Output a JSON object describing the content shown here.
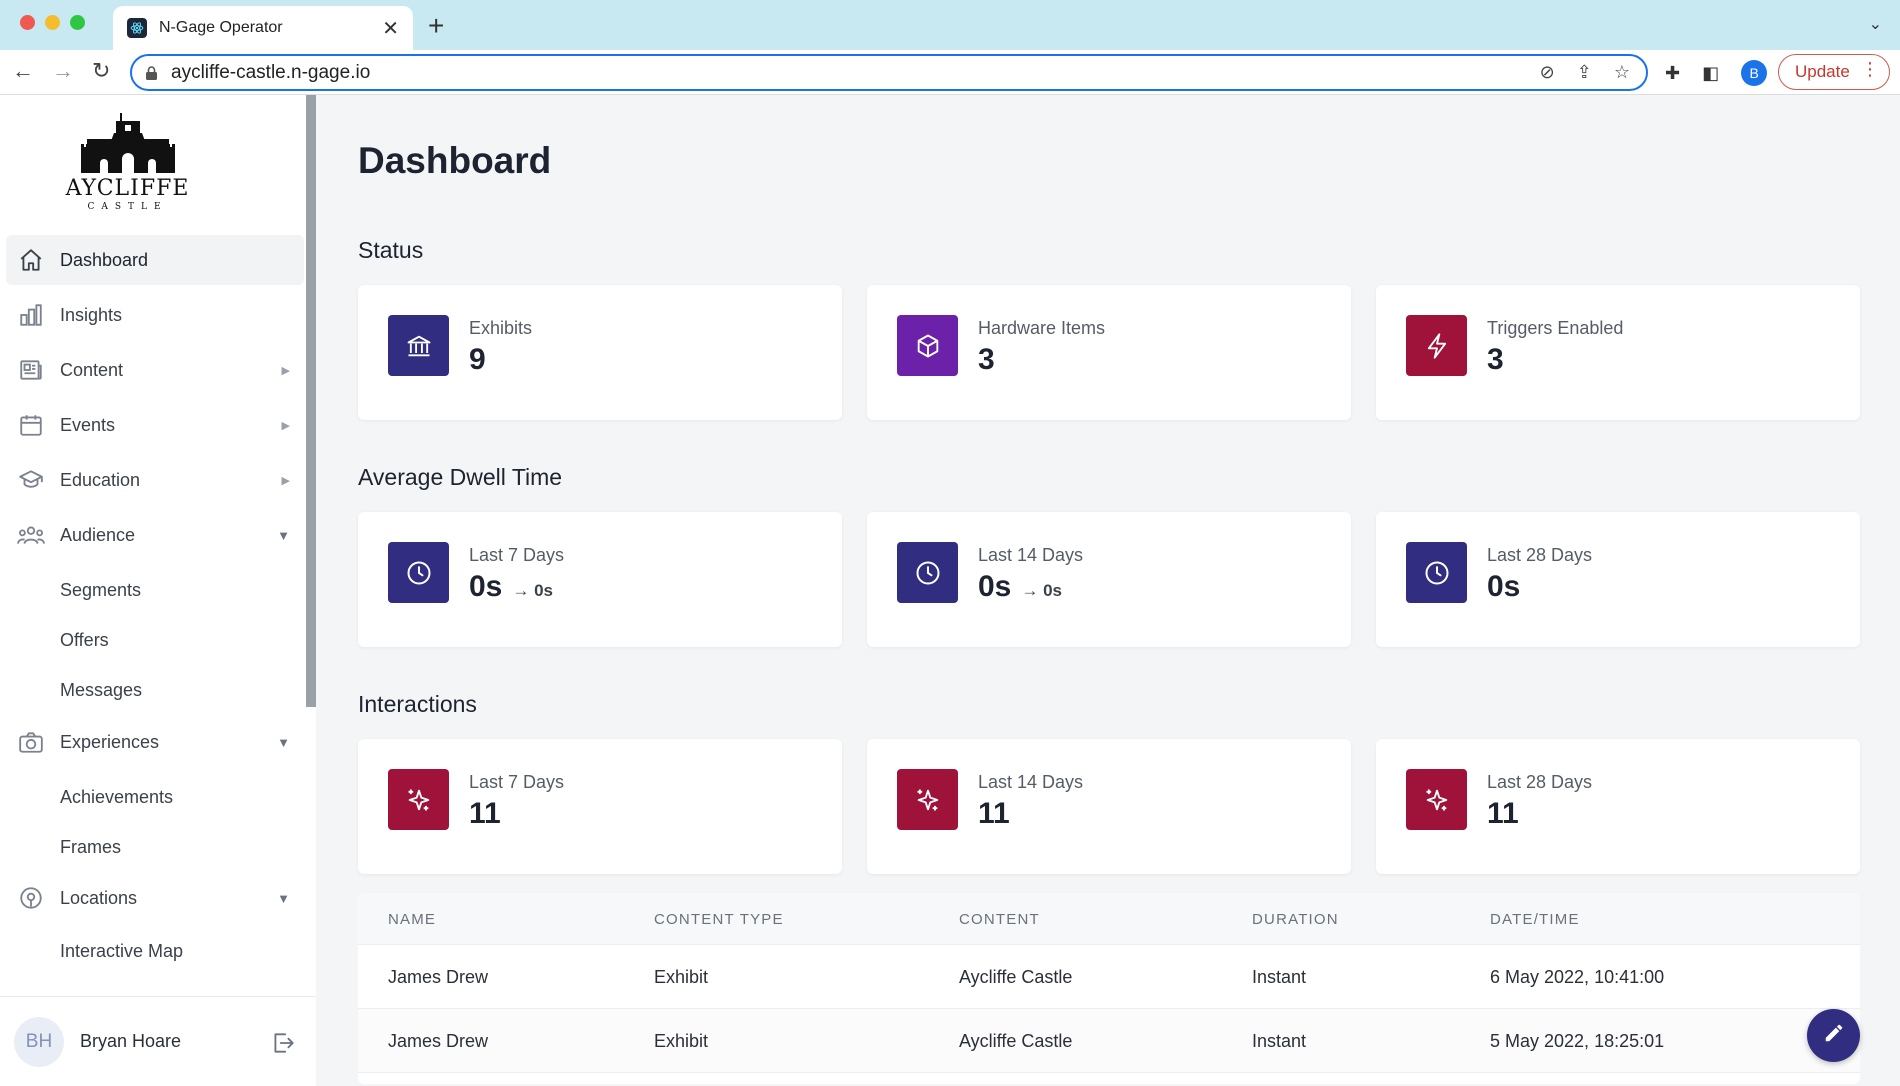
{
  "browser": {
    "tab_title": "N-Gage Operator",
    "url": "aycliffe-castle.n-gage.io",
    "profile_initial": "B",
    "update_label": "Update"
  },
  "brand": {
    "logo_word": "AYCLIFFE",
    "logo_sub": "CASTLE"
  },
  "sidebar": {
    "items": [
      {
        "label": "Dashboard",
        "icon": "home-icon",
        "active": true
      },
      {
        "label": "Insights",
        "icon": "bar-chart-icon"
      },
      {
        "label": "Content",
        "icon": "newspaper-icon",
        "expandable": true
      },
      {
        "label": "Events",
        "icon": "calendar-icon",
        "expandable": true
      },
      {
        "label": "Education",
        "icon": "graduation-cap-icon",
        "expandable": true
      },
      {
        "label": "Audience",
        "icon": "users-icon",
        "expanded": true
      },
      {
        "label": "Segments"
      },
      {
        "label": "Offers"
      },
      {
        "label": "Messages"
      },
      {
        "label": "Experiences",
        "icon": "camera-icon",
        "expanded": true
      },
      {
        "label": "Achievements"
      },
      {
        "label": "Frames"
      },
      {
        "label": "Locations",
        "icon": "map-pin-icon",
        "expanded": true
      },
      {
        "label": "Interactive Map"
      }
    ],
    "user": {
      "initials": "BH",
      "name": "Bryan Hoare"
    }
  },
  "main": {
    "title": "Dashboard",
    "sections": [
      {
        "title": "Status",
        "cards": [
          {
            "label": "Exhibits",
            "value": "9",
            "icon": "building-columns-icon",
            "color": "#312e81"
          },
          {
            "label": "Hardware Items",
            "value": "3",
            "icon": "cube-icon",
            "color": "#6b21a8"
          },
          {
            "label": "Triggers Enabled",
            "value": "3",
            "icon": "lightning-icon",
            "color": "#9f1239"
          }
        ]
      },
      {
        "title": "Average Dwell Time",
        "cards": [
          {
            "label": "Last 7 Days",
            "value": "0s",
            "delta": "→ 0s",
            "icon": "clock-icon",
            "color": "#312e81"
          },
          {
            "label": "Last 14 Days",
            "value": "0s",
            "delta": "→ 0s",
            "icon": "clock-icon",
            "color": "#312e81"
          },
          {
            "label": "Last 28 Days",
            "value": "0s",
            "icon": "clock-icon",
            "color": "#312e81"
          }
        ]
      },
      {
        "title": "Interactions",
        "cards": [
          {
            "label": "Last 7 Days",
            "value": "11",
            "icon": "sparkles-icon",
            "color": "#9f1239"
          },
          {
            "label": "Last 14 Days",
            "value": "11",
            "icon": "sparkles-icon",
            "color": "#9f1239"
          },
          {
            "label": "Last 28 Days",
            "value": "11",
            "icon": "sparkles-icon",
            "color": "#9f1239"
          }
        ]
      }
    ],
    "table": {
      "columns": [
        "NAME",
        "CONTENT TYPE",
        "CONTENT",
        "DURATION",
        "DATE/TIME"
      ],
      "rows": [
        [
          "James Drew",
          "Exhibit",
          "Aycliffe Castle",
          "Instant",
          "6 May 2022, 10:41:00"
        ],
        [
          "James Drew",
          "Exhibit",
          "Aycliffe Castle",
          "Instant",
          "5 May 2022, 18:25:01"
        ]
      ]
    },
    "fab_icon": "pencil-icon"
  }
}
